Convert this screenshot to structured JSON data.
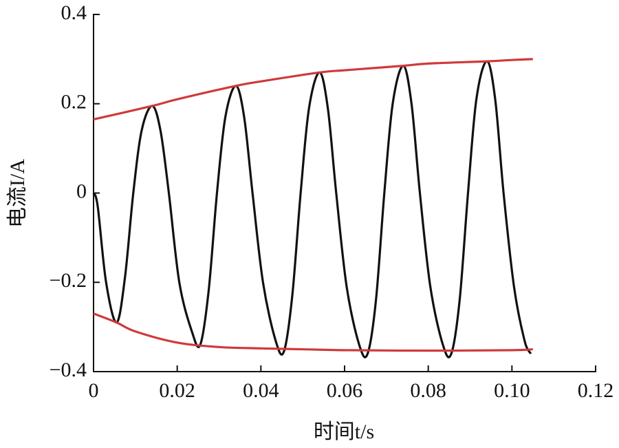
{
  "chart_data": {
    "type": "line",
    "xlabel": "时间t/s",
    "ylabel": "电流I/A",
    "xlim": [
      0,
      0.12
    ],
    "ylim": [
      -0.4,
      0.4
    ],
    "xticks": [
      0,
      0.02,
      0.04,
      0.06,
      0.08,
      {
        "value": 0.1,
        "label": "0.10"
      },
      0.12
    ],
    "yticks": [
      {
        "value": -0.4,
        "label": "−0.4"
      },
      {
        "value": -0.2,
        "label": "−0.2"
      },
      0,
      0.2,
      0.4
    ],
    "series": [
      {
        "color": "#111111",
        "x": [
          0,
          0.001,
          0.003,
          0.0055,
          0.0075,
          0.0095,
          0.0115,
          0.014,
          0.016,
          0.018,
          0.0205,
          0.0235,
          0.0255,
          0.0275,
          0.0295,
          0.0315,
          0.034,
          0.036,
          0.038,
          0.0405,
          0.0435,
          0.0455,
          0.0475,
          0.0495,
          0.0515,
          0.054,
          0.056,
          0.058,
          0.0605,
          0.0635,
          0.0655,
          0.0675,
          0.0695,
          0.0715,
          0.074,
          0.076,
          0.078,
          0.0805,
          0.0835,
          0.0855,
          0.0875,
          0.0895,
          0.0915,
          0.094,
          0.096,
          0.098,
          0.1005,
          0.103,
          0.1045
        ],
        "values": [
          0,
          -0.03,
          -0.2,
          -0.29,
          -0.19,
          0.0,
          0.14,
          0.195,
          0.14,
          0.0,
          -0.2,
          -0.31,
          -0.34,
          -0.22,
          0.0,
          0.17,
          0.24,
          0.17,
          0.0,
          -0.2,
          -0.33,
          -0.355,
          -0.23,
          0.0,
          0.19,
          0.27,
          0.19,
          0.0,
          -0.21,
          -0.34,
          -0.36,
          -0.24,
          0.0,
          0.2,
          0.285,
          0.2,
          0.0,
          -0.21,
          -0.34,
          -0.36,
          -0.24,
          0.0,
          0.21,
          0.295,
          0.21,
          0.0,
          -0.21,
          -0.33,
          -0.36
        ]
      },
      {
        "color": "#d0393a",
        "x": [
          0,
          0.014,
          0.02,
          0.034,
          0.04,
          0.054,
          0.06,
          0.074,
          0.08,
          0.094,
          0.1,
          0.105
        ],
        "values": [
          0.165,
          0.195,
          0.21,
          0.24,
          0.25,
          0.27,
          0.275,
          0.285,
          0.29,
          0.295,
          0.298,
          0.3
        ]
      },
      {
        "color": "#d0393a",
        "x": [
          0,
          0.0055,
          0.01,
          0.02,
          0.03,
          0.04,
          0.05,
          0.06,
          0.08,
          0.1,
          0.105
        ],
        "values": [
          -0.27,
          -0.29,
          -0.31,
          -0.335,
          -0.345,
          -0.348,
          -0.35,
          -0.352,
          -0.353,
          -0.352,
          -0.35
        ]
      }
    ]
  }
}
